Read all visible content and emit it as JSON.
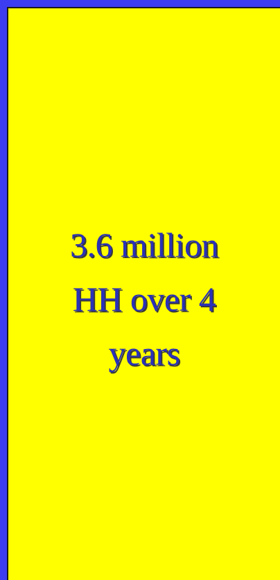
{
  "slide": {
    "colors": {
      "frame": "#3c3cf0",
      "panel": "#ffff00",
      "text": "#2a31b8"
    },
    "message_lines": [
      "3.6 million",
      "HH over 4",
      "years"
    ]
  }
}
